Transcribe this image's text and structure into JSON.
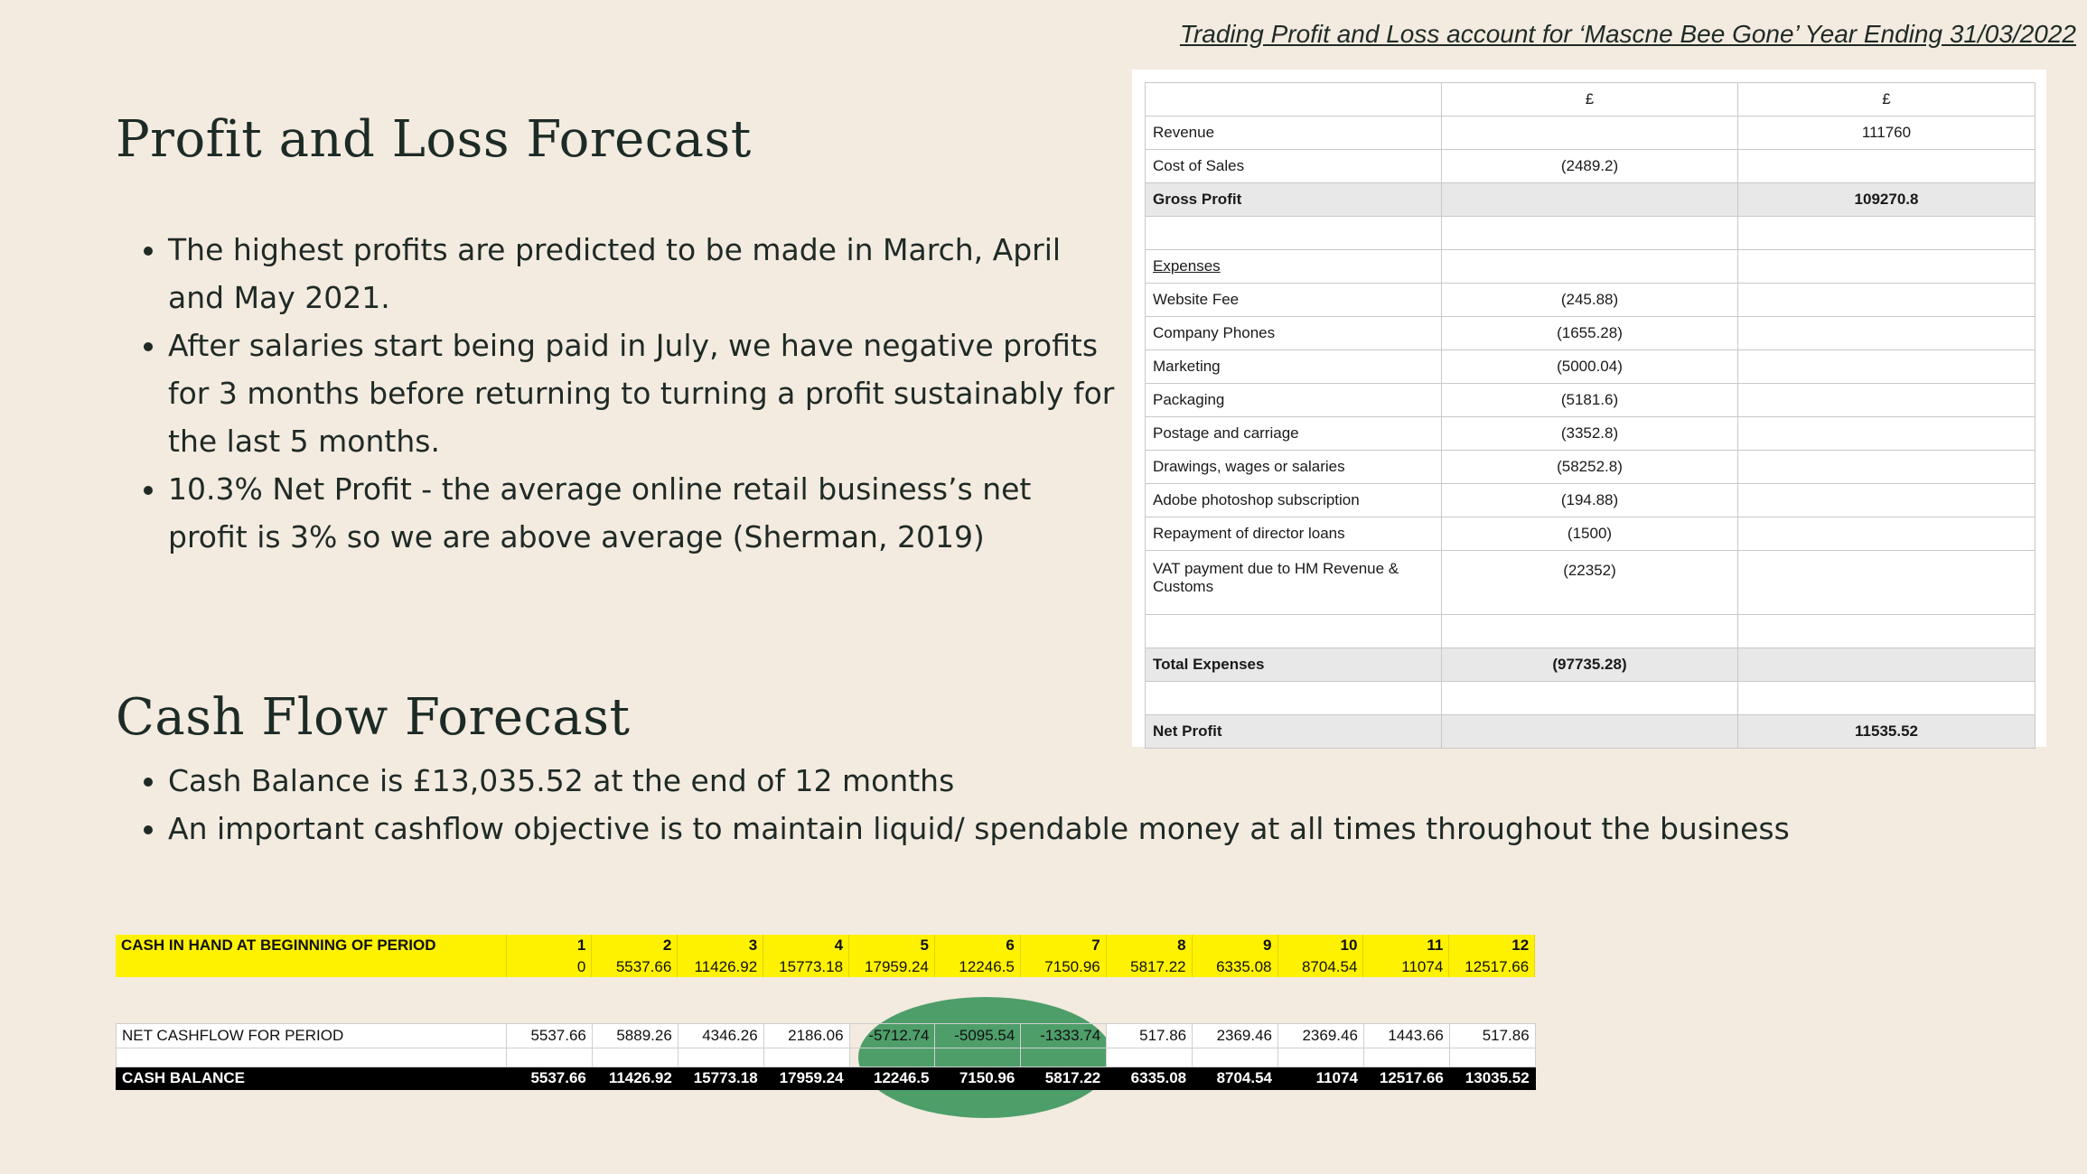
{
  "caption": "Trading Profit and Loss account for ‘Mascne Bee Gone’ Year Ending 31/03/2022",
  "pl_section": {
    "heading": "Profit and Loss Forecast",
    "bullets": [
      "The highest profits are predicted to be made in March, April and May 2021.",
      "After salaries start being paid in July, we have negative profits for 3 months before returning to turning a profit sustainably for the last 5 months.",
      "10.3% Net Profit - the average online retail business’s net profit is 3% so we are above average (Sherman, 2019)"
    ]
  },
  "cf_section": {
    "heading": "Cash Flow Forecast",
    "bullets": [
      "Cash Balance is £13,035.52 at the end of 12 months",
      "An important cashflow objective is to maintain liquid/ spendable money at all times throughout the business"
    ]
  },
  "pl_table": {
    "header": [
      "",
      "£",
      "£"
    ],
    "rows": [
      {
        "label": "Revenue",
        "col1": "",
        "col2": "111760"
      },
      {
        "label": "Cost of Sales",
        "col1": "(2489.2)",
        "col2": ""
      },
      {
        "label": "Gross Profit",
        "col1": "",
        "col2": "109270.8"
      },
      {
        "label": "",
        "col1": "",
        "col2": ""
      },
      {
        "label": "Expenses",
        "col1": "",
        "col2": ""
      },
      {
        "label": "Website Fee",
        "col1": "(245.88)",
        "col2": ""
      },
      {
        "label": "Company Phones",
        "col1": "(1655.28)",
        "col2": ""
      },
      {
        "label": "Marketing",
        "col1": "(5000.04)",
        "col2": ""
      },
      {
        "label": "Packaging",
        "col1": "(5181.6)",
        "col2": ""
      },
      {
        "label": "Postage and carriage",
        "col1": "(3352.8)",
        "col2": ""
      },
      {
        "label": "Drawings, wages or salaries",
        "col1": "(58252.8)",
        "col2": ""
      },
      {
        "label": "Adobe photoshop subscription",
        "col1": "(194.88)",
        "col2": ""
      },
      {
        "label": "Repayment of director loans",
        "col1": "(1500)",
        "col2": ""
      },
      {
        "label": "VAT payment due to HM Revenue & Customs",
        "col1": "(22352)",
        "col2": ""
      },
      {
        "label": "",
        "col1": "",
        "col2": ""
      },
      {
        "label": "Total Expenses",
        "col1": "(97735.28)",
        "col2": ""
      },
      {
        "label": "",
        "col1": "",
        "col2": ""
      },
      {
        "label": "Net Profit",
        "col1": "",
        "col2": "11535.52"
      }
    ]
  },
  "cashflow": {
    "opening_label": "CASH IN HAND AT BEGINNING OF PERIOD",
    "months": [
      "1",
      "2",
      "3",
      "4",
      "5",
      "6",
      "7",
      "8",
      "9",
      "10",
      "11",
      "12"
    ],
    "opening_values": [
      "0",
      "5537.66",
      "11426.92",
      "15773.18",
      "17959.24",
      "12246.5",
      "7150.96",
      "5817.22",
      "6335.08",
      "8704.54",
      "11074",
      "12517.66"
    ],
    "net_label": "NET CASHFLOW FOR PERIOD",
    "net_values": [
      "5537.66",
      "5889.26",
      "4346.26",
      "2186.06",
      "-5712.74",
      "-5095.54",
      "-1333.74",
      "517.86",
      "2369.46",
      "2369.46",
      "1443.66",
      "517.86"
    ],
    "balance_label": "CASH BALANCE",
    "balance_values": [
      "5537.66",
      "11426.92",
      "15773.18",
      "17959.24",
      "12246.5",
      "7150.96",
      "5817.22",
      "6335.08",
      "8704.54",
      "11074",
      "12517.66",
      "13035.52"
    ]
  },
  "colors": {
    "background": "#f3ebdf",
    "highlight_yellow": "#fff200",
    "highlight_green": "#4e9e6a",
    "balance_row": "#000000"
  }
}
